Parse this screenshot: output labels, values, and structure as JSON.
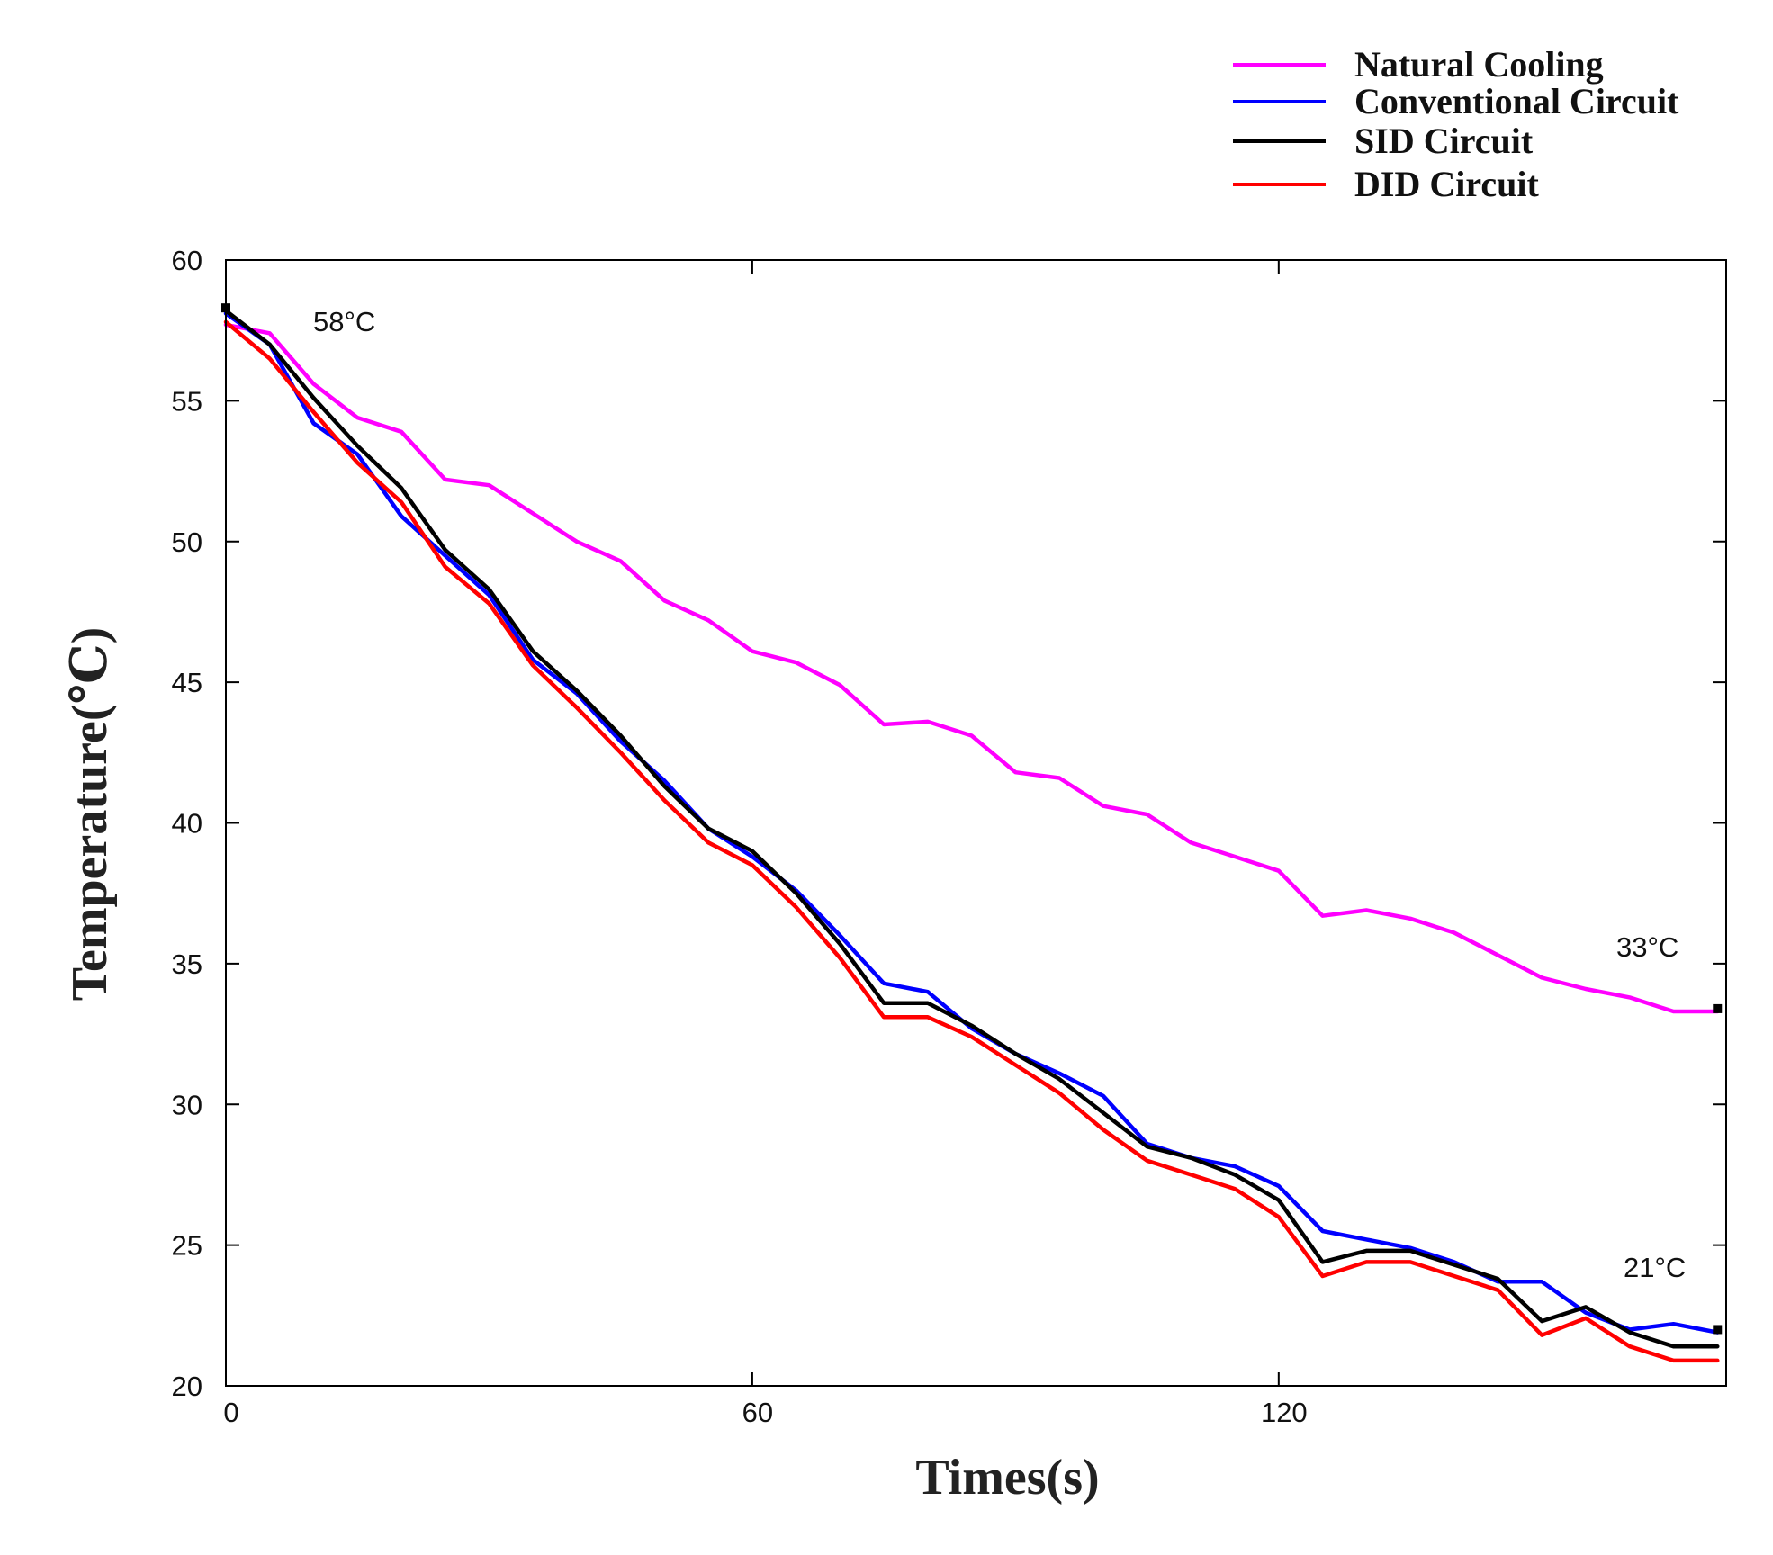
{
  "chart_data": {
    "type": "line",
    "title": "",
    "xlabel": "Times(s)",
    "ylabel": "Temperature(℃)",
    "xlim": [
      0,
      171
    ],
    "ylim": [
      20,
      60
    ],
    "xticks": [
      0,
      60,
      120
    ],
    "yticks": [
      20,
      25,
      30,
      35,
      40,
      45,
      50,
      55,
      60
    ],
    "legend_position": "top-right",
    "grid": false,
    "x": [
      0,
      5,
      10,
      15,
      20,
      25,
      30,
      35,
      40,
      45,
      50,
      55,
      60,
      65,
      70,
      75,
      80,
      85,
      90,
      95,
      100,
      105,
      110,
      115,
      120,
      125,
      130,
      135,
      140,
      145,
      150,
      155,
      160,
      165,
      170
    ],
    "series": [
      {
        "name": "Natural Cooling",
        "color": "#ff00ff",
        "values": [
          57.7,
          57.4,
          55.6,
          54.4,
          53.9,
          52.2,
          52.0,
          51.0,
          50.0,
          49.3,
          47.9,
          47.2,
          46.1,
          45.7,
          44.9,
          43.5,
          43.6,
          43.1,
          41.8,
          41.6,
          40.6,
          40.3,
          39.3,
          38.8,
          38.3,
          36.7,
          36.9,
          36.6,
          36.1,
          35.3,
          34.5,
          34.1,
          33.8,
          33.3,
          33.3
        ]
      },
      {
        "name": "Conventional Circuit",
        "color": "#0000ff",
        "values": [
          58.1,
          57.0,
          54.2,
          53.1,
          50.9,
          49.5,
          48.1,
          45.8,
          44.6,
          42.9,
          41.5,
          39.8,
          38.8,
          37.6,
          36.0,
          34.3,
          34.0,
          32.7,
          31.8,
          31.1,
          30.3,
          28.6,
          28.1,
          27.8,
          27.1,
          25.5,
          25.2,
          24.9,
          24.4,
          23.7,
          23.7,
          22.6,
          22.0,
          22.2,
          21.9
        ]
      },
      {
        "name": "SID Circuit",
        "color": "#000000",
        "values": [
          58.2,
          57.0,
          55.1,
          53.4,
          51.9,
          49.7,
          48.3,
          46.1,
          44.7,
          43.1,
          41.3,
          39.8,
          39.0,
          37.5,
          35.7,
          33.6,
          33.6,
          32.8,
          31.8,
          30.9,
          29.7,
          28.5,
          28.1,
          27.5,
          26.6,
          24.4,
          24.8,
          24.8,
          24.3,
          23.8,
          22.3,
          22.8,
          21.9,
          21.4,
          21.4
        ]
      },
      {
        "name": "DID Circuit",
        "color": "#ff0000",
        "values": [
          57.8,
          56.5,
          54.6,
          52.8,
          51.4,
          49.1,
          47.8,
          45.6,
          44.1,
          42.5,
          40.8,
          39.3,
          38.5,
          37.0,
          35.2,
          33.1,
          33.1,
          32.4,
          31.4,
          30.4,
          29.1,
          28.0,
          27.5,
          27.0,
          26.0,
          23.9,
          24.4,
          24.4,
          23.9,
          23.4,
          21.8,
          22.4,
          21.4,
          20.9,
          20.9
        ]
      }
    ],
    "annotations": [
      {
        "text": "58°C",
        "x": 0,
        "y": 58.3
      },
      {
        "text": "33°C",
        "x": 170,
        "y": 33.4
      },
      {
        "text": "21°C",
        "x": 170,
        "y": 22.0
      }
    ]
  }
}
